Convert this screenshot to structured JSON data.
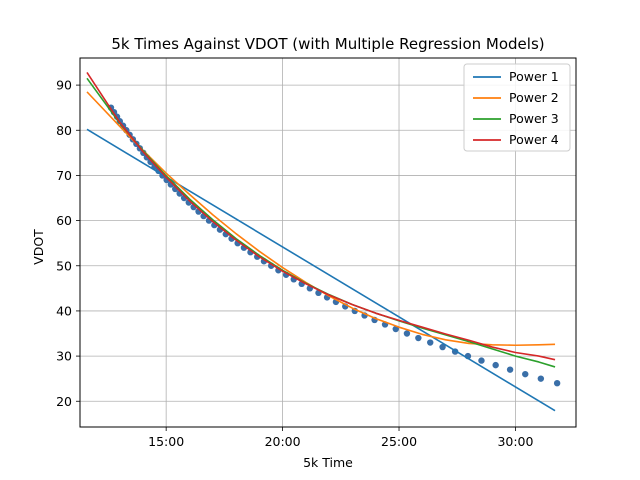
{
  "chart_data": {
    "type": "line",
    "title": "5k Times Against VDOT (with Multiple Regression Models)",
    "xlabel": "5k Time",
    "ylabel": "VDOT",
    "x_unit": "minutes",
    "xlim": [
      11.3,
      32.6
    ],
    "ylim": [
      14.3,
      96.0
    ],
    "x_ticks": [
      {
        "value": 15,
        "label": "15:00"
      },
      {
        "value": 20,
        "label": "20:00"
      },
      {
        "value": 25,
        "label": "25:00"
      },
      {
        "value": 30,
        "label": "30:00"
      }
    ],
    "y_ticks": [
      {
        "value": 20,
        "label": "20"
      },
      {
        "value": 30,
        "label": "30"
      },
      {
        "value": 40,
        "label": "40"
      },
      {
        "value": 50,
        "label": "50"
      },
      {
        "value": 60,
        "label": "60"
      },
      {
        "value": 70,
        "label": "70"
      },
      {
        "value": 80,
        "label": "80"
      },
      {
        "value": 90,
        "label": "90"
      }
    ],
    "grid": true,
    "legend": {
      "position": "top-right"
    },
    "scatter": {
      "name": "",
      "color": "#3a6fa8",
      "points": [
        [
          12.63,
          85
        ],
        [
          12.76,
          84
        ],
        [
          12.89,
          83
        ],
        [
          13.01,
          82
        ],
        [
          13.15,
          81
        ],
        [
          13.29,
          80
        ],
        [
          13.43,
          79
        ],
        [
          13.57,
          78
        ],
        [
          13.72,
          77
        ],
        [
          13.87,
          76
        ],
        [
          14.02,
          75
        ],
        [
          14.17,
          74
        ],
        [
          14.33,
          73
        ],
        [
          14.5,
          72
        ],
        [
          14.67,
          71
        ],
        [
          14.84,
          70
        ],
        [
          15.02,
          69
        ],
        [
          15.2,
          68
        ],
        [
          15.39,
          67
        ],
        [
          15.58,
          66
        ],
        [
          15.77,
          65
        ],
        [
          15.97,
          64
        ],
        [
          16.18,
          63
        ],
        [
          16.39,
          62
        ],
        [
          16.61,
          61
        ],
        [
          16.84,
          60
        ],
        [
          17.07,
          59
        ],
        [
          17.31,
          58
        ],
        [
          17.56,
          57
        ],
        [
          17.81,
          56
        ],
        [
          18.07,
          55
        ],
        [
          18.34,
          54
        ],
        [
          18.62,
          53
        ],
        [
          18.91,
          52
        ],
        [
          19.2,
          51
        ],
        [
          19.51,
          50
        ],
        [
          19.82,
          49
        ],
        [
          20.15,
          48
        ],
        [
          20.48,
          47
        ],
        [
          20.82,
          46
        ],
        [
          21.17,
          45
        ],
        [
          21.54,
          44
        ],
        [
          21.91,
          43
        ],
        [
          22.29,
          42
        ],
        [
          22.69,
          41
        ],
        [
          23.1,
          40
        ],
        [
          23.52,
          39
        ],
        [
          23.95,
          38
        ],
        [
          24.4,
          37
        ],
        [
          24.86,
          36
        ],
        [
          25.34,
          35
        ],
        [
          25.83,
          34
        ],
        [
          26.34,
          33
        ],
        [
          26.87,
          32
        ],
        [
          27.41,
          31
        ],
        [
          27.96,
          30
        ],
        [
          28.54,
          29
        ],
        [
          29.15,
          28
        ],
        [
          29.77,
          27
        ],
        [
          30.42,
          26
        ],
        [
          31.09,
          25
        ],
        [
          31.79,
          24
        ]
      ]
    },
    "series": [
      {
        "name": "Power 1",
        "color": "#1f77b4",
        "points": [
          [
            11.6,
            80.2
          ],
          [
            31.7,
            17.9
          ]
        ]
      },
      {
        "name": "Power 2",
        "color": "#ff7f0e",
        "points": [
          [
            11.6,
            88.5
          ],
          [
            13.0,
            80.9
          ],
          [
            14.0,
            75.6
          ],
          [
            15.0,
            70.5
          ],
          [
            16.0,
            65.8
          ],
          [
            17.0,
            61.3
          ],
          [
            18.0,
            57.1
          ],
          [
            19.0,
            53.2
          ],
          [
            20.0,
            49.6
          ],
          [
            21.0,
            46.3
          ],
          [
            22.0,
            43.3
          ],
          [
            23.0,
            40.6
          ],
          [
            24.0,
            38.3
          ],
          [
            25.0,
            36.4
          ],
          [
            26.0,
            34.8
          ],
          [
            27.0,
            33.6
          ],
          [
            28.0,
            32.8
          ],
          [
            29.0,
            32.5
          ],
          [
            30.0,
            32.4
          ],
          [
            31.0,
            32.5
          ],
          [
            31.7,
            32.6
          ]
        ]
      },
      {
        "name": "Power 3",
        "color": "#2ca02c",
        "points": [
          [
            11.6,
            91.5
          ],
          [
            13.0,
            81.6
          ],
          [
            14.0,
            75.5
          ],
          [
            15.0,
            69.9
          ],
          [
            16.0,
            64.8
          ],
          [
            17.0,
            60.2
          ],
          [
            18.0,
            56.0
          ],
          [
            19.0,
            52.3
          ],
          [
            20.0,
            49.0
          ],
          [
            21.0,
            46.1
          ],
          [
            22.0,
            43.6
          ],
          [
            23.0,
            41.4
          ],
          [
            24.0,
            39.5
          ],
          [
            25.0,
            37.8
          ],
          [
            26.0,
            36.2
          ],
          [
            27.0,
            34.7
          ],
          [
            28.0,
            33.2
          ],
          [
            29.0,
            31.6
          ],
          [
            30.0,
            30.0
          ],
          [
            31.0,
            28.7
          ],
          [
            31.7,
            27.6
          ]
        ]
      },
      {
        "name": "Power 4",
        "color": "#d62728",
        "points": [
          [
            11.6,
            92.8
          ],
          [
            13.0,
            81.8
          ],
          [
            14.0,
            75.3
          ],
          [
            15.0,
            69.6
          ],
          [
            16.0,
            64.4
          ],
          [
            17.0,
            59.8
          ],
          [
            18.0,
            55.7
          ],
          [
            19.0,
            52.0
          ],
          [
            20.0,
            48.8
          ],
          [
            21.0,
            46.0
          ],
          [
            22.0,
            43.5
          ],
          [
            23.0,
            41.4
          ],
          [
            24.0,
            39.5
          ],
          [
            25.0,
            37.9
          ],
          [
            26.0,
            36.4
          ],
          [
            27.0,
            34.9
          ],
          [
            28.0,
            33.5
          ],
          [
            29.0,
            32.0
          ],
          [
            30.0,
            30.8
          ],
          [
            31.0,
            30.0
          ],
          [
            31.7,
            29.2
          ]
        ]
      }
    ]
  }
}
